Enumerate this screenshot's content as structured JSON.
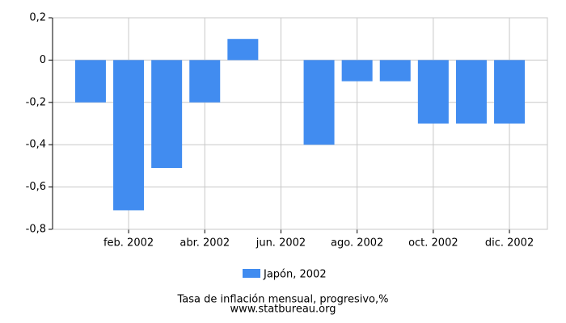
{
  "chart_data": {
    "type": "bar",
    "categories": [
      null,
      "feb. 2002",
      null,
      "abr. 2002",
      null,
      "jun. 2002",
      null,
      "ago. 2002",
      null,
      "oct. 2002",
      null,
      "dic. 2002"
    ],
    "series": [
      {
        "name": "Japón, 2002",
        "color": "#418cf0",
        "values": [
          -0.2,
          -0.71,
          -0.51,
          -0.2,
          0.1,
          0,
          -0.4,
          -0.1,
          -0.1,
          -0.3,
          -0.3,
          -0.3
        ]
      }
    ],
    "ylim": [
      -0.8,
      0.2
    ],
    "yticks": [
      {
        "value": -0.8,
        "label": "-0,8"
      },
      {
        "value": -0.6,
        "label": "-0,6"
      },
      {
        "value": -0.4,
        "label": "-0,4"
      },
      {
        "value": -0.2,
        "label": "-0,2"
      },
      0,
      {
        "value": 0.2,
        "label": "0,2"
      }
    ],
    "grid": true,
    "title": "Tasa de inflación mensual, progresivo,%",
    "subtitle": "www.statbureau.org"
  }
}
